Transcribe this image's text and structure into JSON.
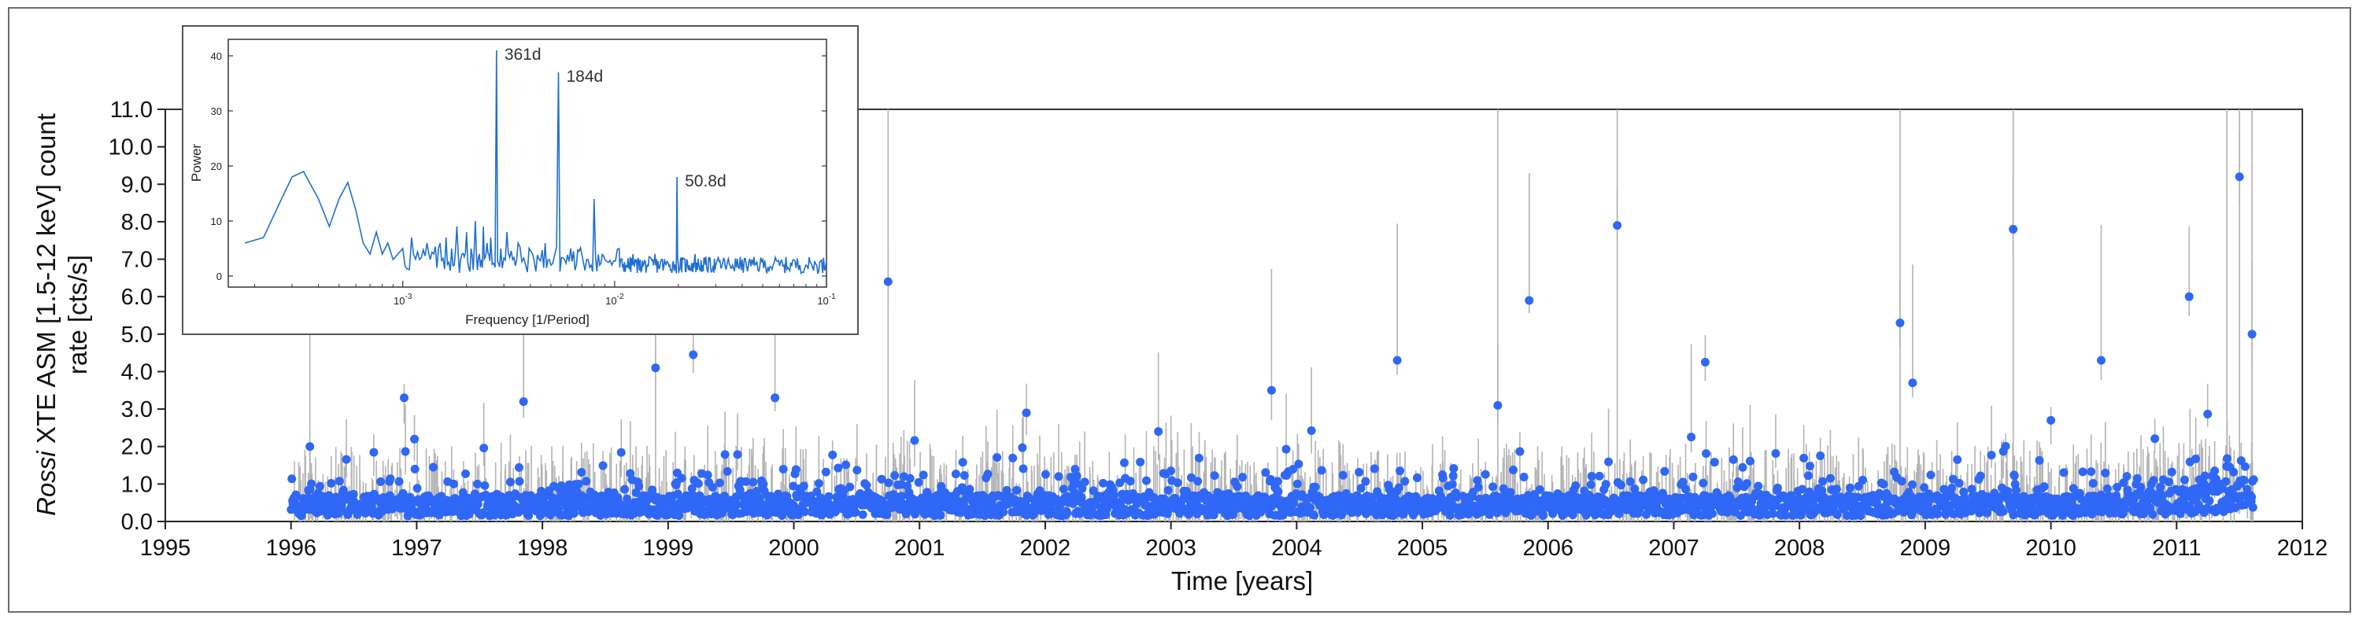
{
  "chart_data": [
    {
      "type": "scatter",
      "title": "",
      "xlabel": "Time [years]",
      "ylabel_parts": [
        "Rossi",
        " XTE ASM [1.5-12 keV] count",
        "rate [cts/s]"
      ],
      "xlim": [
        1995,
        2012
      ],
      "ylim": [
        0,
        11
      ],
      "x_ticks": [
        "1995",
        "1996",
        "1997",
        "1998",
        "1999",
        "2000",
        "2001",
        "2002",
        "2003",
        "2004",
        "2005",
        "2006",
        "2007",
        "2008",
        "2009",
        "2010",
        "2011",
        "2012"
      ],
      "y_ticks": [
        "0.0",
        "1.0",
        "2.0",
        "3.0",
        "4.0",
        "5.0",
        "6.0",
        "7.0",
        "8.0",
        "9.0",
        "10.0",
        "11.0"
      ],
      "grid": false,
      "colors": {
        "points": "#2f67f6",
        "errorbars": "#b3b3b3"
      },
      "series": [
        {
          "highlighted_points": {
            "x": [
              1996.05,
              1996.15,
              1996.9,
              1997.85,
              1998.9,
              1999.2,
              1999.85,
              2000.75,
              2001.85,
              2002.9,
              2003.8,
              2004.8,
              2005.6,
              2005.85,
              2006.55,
              2007.25,
              2008.8,
              2008.9,
              2009.7,
              2010.0,
              2010.4,
              2011.1,
              2011.5,
              2011.6
            ],
            "y": [
              0.3,
              2.0,
              3.3,
              3.2,
              4.1,
              4.45,
              3.3,
              6.4,
              2.9,
              2.4,
              3.5,
              4.3,
              3.1,
              5.9,
              7.9,
              4.25,
              5.3,
              3.7,
              7.8,
              2.7,
              4.3,
              6.0,
              9.2,
              5.0
            ]
          },
          "summary": "~2800 daily-average points from early 1996 to mid 2011; typical rate 0.1-1.2 cts/s with flares"
        }
      ]
    },
    {
      "type": "line",
      "title": "",
      "xlabel": "Frequency [1/Period]",
      "ylabel": "Power",
      "x_scale": "log",
      "xlim": [
        0.00015,
        0.1
      ],
      "ylim": [
        -2,
        43
      ],
      "x_ticks": [
        "10",
        "10",
        "10"
      ],
      "x_tick_exponents": [
        "-3",
        "-2",
        "-1"
      ],
      "y_ticks": [
        "0",
        "10",
        "20",
        "30",
        "40"
      ],
      "colors": {
        "line": "#1f6fd0"
      },
      "peaks": [
        {
          "label": "361d",
          "x": 0.00277,
          "y": 41
        },
        {
          "label": "184d",
          "x": 0.00543,
          "y": 37
        },
        {
          "label": "50.8d",
          "x": 0.0197,
          "y": 18
        }
      ],
      "series": [
        {
          "x": [
            0.00018,
            0.00022,
            0.00026,
            0.0003,
            0.00034,
            0.0004,
            0.00045,
            0.0005,
            0.00055,
            0.0006,
            0.00065,
            0.0007,
            0.00075,
            0.0008,
            0.00085,
            0.0009,
            0.001,
            0.0011,
            0.0012,
            0.0013,
            0.0014,
            0.0015,
            0.0016,
            0.0017,
            0.0018,
            0.0019,
            0.002,
            0.0021,
            0.0022,
            0.0023,
            0.0024,
            0.0025,
            0.0026,
            0.00277,
            0.0029,
            0.0031,
            0.0033,
            0.0035,
            0.0038,
            0.0041,
            0.0044,
            0.0047,
            0.005,
            0.00543,
            0.0058,
            0.0062,
            0.0066,
            0.007,
            0.0075,
            0.008,
            0.0085,
            0.009,
            0.0097,
            0.0105,
            0.0113,
            0.0122,
            0.0132,
            0.0143,
            0.0155,
            0.0168,
            0.0182,
            0.0197,
            0.021,
            0.0225,
            0.024,
            0.026,
            0.028,
            0.03,
            0.033,
            0.036,
            0.04,
            0.045,
            0.05,
            0.056,
            0.063,
            0.07,
            0.08,
            0.09,
            0.1
          ],
          "y": [
            6,
            7,
            13,
            18,
            19,
            14,
            9,
            14,
            17,
            12,
            6,
            4,
            8,
            4,
            6,
            3,
            5,
            7,
            3,
            6,
            4,
            6,
            7,
            5,
            9,
            4,
            8,
            5,
            10,
            4,
            9,
            6,
            7,
            41,
            5,
            8,
            3,
            6,
            2,
            4,
            3,
            6,
            2,
            37,
            3,
            5,
            2,
            4,
            3,
            14,
            2,
            3,
            2,
            5,
            2,
            4,
            3,
            2,
            4,
            3,
            2,
            18,
            3,
            2,
            4,
            2,
            3,
            2,
            3,
            2,
            3,
            2,
            3,
            2,
            2,
            3,
            2,
            2,
            3
          ]
        }
      ]
    }
  ]
}
